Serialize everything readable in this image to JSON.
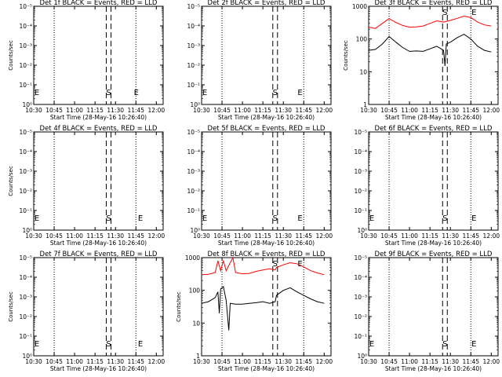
{
  "page_meta": {
    "background_color": "#ffffff",
    "axis_color": "#000000",
    "events_color": "#000000",
    "lld_color": "#ff0000"
  },
  "chart_data": [
    {
      "type": "line",
      "title": "Det 1f BLACK = Events, RED = LLD",
      "xlabel": "Start Time (28-May-16 10:26:40)",
      "ylabel": "Counts/sec",
      "x_ticks": [
        "10:30",
        "10:45",
        "11:00",
        "11:15",
        "11:30",
        "11:45",
        "12:00"
      ],
      "y_scale": "log",
      "y_ticks": [
        "10⁰",
        "10⁻¹",
        "10⁻²",
        "10⁻³",
        "10⁻⁴",
        "10⁻⁵"
      ],
      "markers": [
        {
          "label": "E",
          "time": "10:30"
        },
        {
          "label": "S",
          "time": "11:25"
        },
        {
          "label": "E",
          "time": "11:43"
        }
      ],
      "series": []
    },
    {
      "type": "line",
      "title": "Det 2f BLACK = Events, RED = LLD",
      "xlabel": "Start Time (28-May-16 10:26:40)",
      "ylabel": "",
      "x_ticks": [
        "10:30",
        "10:45",
        "11:00",
        "11:15",
        "11:30",
        "11:45",
        "12:00"
      ],
      "y_scale": "log",
      "y_ticks": [
        "10⁰",
        "10⁻¹",
        "10⁻²",
        "10⁻³",
        "10⁻⁴",
        "10⁻⁵"
      ],
      "markers": [
        {
          "label": "E",
          "time": "10:30"
        },
        {
          "label": "S",
          "time": "11:24"
        },
        {
          "label": "E",
          "time": "11:40"
        }
      ],
      "series": []
    },
    {
      "type": "line",
      "title": "Det 3f BLACK = Events, RED = LLD",
      "xlabel": "Start Time (28-May-16 10:26:40)",
      "ylabel": "Counts/sec",
      "x_ticks": [
        "10:30",
        "10:45",
        "11:00",
        "11:15",
        "11:30",
        "11:45",
        "12:00"
      ],
      "y_scale": "log",
      "y_ticks": [
        "1",
        "10",
        "100",
        "1000"
      ],
      "markers": [
        {
          "label": "S",
          "time": "11:26"
        },
        {
          "label": "E",
          "time": "11:45"
        }
      ],
      "series": [
        {
          "color": "#ff0000",
          "points": [
            [
              "10:30",
              230
            ],
            [
              "10:35",
              210
            ],
            [
              "10:40",
              300
            ],
            [
              "10:45",
              420
            ],
            [
              "10:50",
              320
            ],
            [
              "10:55",
              260
            ],
            [
              "11:00",
              230
            ],
            [
              "11:05",
              235
            ],
            [
              "11:10",
              250
            ],
            [
              "11:15",
              300
            ],
            [
              "11:20",
              360
            ],
            [
              "11:25",
              330
            ],
            [
              "11:30",
              370
            ],
            [
              "11:35",
              430
            ],
            [
              "11:40",
              500
            ],
            [
              "11:45",
              450
            ],
            [
              "11:50",
              330
            ],
            [
              "11:55",
              270
            ],
            [
              "12:00",
              250
            ]
          ]
        },
        {
          "color": "#000000",
          "points": [
            [
              "10:30",
              45
            ],
            [
              "10:35",
              48
            ],
            [
              "10:40",
              70
            ],
            [
              "10:45",
              120
            ],
            [
              "10:50",
              80
            ],
            [
              "10:55",
              55
            ],
            [
              "11:00",
              42
            ],
            [
              "11:05",
              43
            ],
            [
              "11:10",
              42
            ],
            [
              "11:15",
              50
            ],
            [
              "11:20",
              60
            ],
            [
              "11:25",
              45
            ],
            [
              "11:26",
              15
            ],
            [
              "11:27",
              70
            ],
            [
              "11:30",
              80
            ],
            [
              "11:35",
              110
            ],
            [
              "11:40",
              140
            ],
            [
              "11:45",
              100
            ],
            [
              "11:50",
              60
            ],
            [
              "11:55",
              45
            ],
            [
              "12:00",
              40
            ]
          ]
        }
      ]
    },
    {
      "type": "line",
      "title": "Det 4f BLACK = Events, RED = LLD",
      "xlabel": "Start Time (28-May-16 10:26:40)",
      "ylabel": "Counts/sec",
      "x_ticks": [
        "10:30",
        "10:45",
        "11:00",
        "11:15",
        "11:30",
        "11:45",
        "12:00"
      ],
      "y_scale": "log",
      "y_ticks": [
        "10⁰",
        "10⁻¹",
        "10⁻²",
        "10⁻³",
        "10⁻⁴",
        "10⁻⁵"
      ],
      "markers": [
        {
          "label": "E",
          "time": "10:30"
        },
        {
          "label": "S",
          "time": "11:25"
        },
        {
          "label": "E",
          "time": "11:46"
        }
      ],
      "series": []
    },
    {
      "type": "line",
      "title": "Det 5f BLACK = Events, RED = LLD",
      "xlabel": "Start Time (28-May-16 10:26:40)",
      "ylabel": "",
      "x_ticks": [
        "10:30",
        "10:45",
        "11:00",
        "11:15",
        "11:30",
        "11:45",
        "12:00"
      ],
      "y_scale": "log",
      "y_ticks": [
        "10⁰",
        "10⁻¹",
        "10⁻²",
        "10⁻³",
        "10⁻⁴",
        "10⁻⁵"
      ],
      "markers": [
        {
          "label": "E",
          "time": "10:30"
        },
        {
          "label": "S",
          "time": "11:24"
        },
        {
          "label": "E",
          "time": "11:40"
        }
      ],
      "series": []
    },
    {
      "type": "line",
      "title": "Det 6f BLACK = Events, RED = LLD",
      "xlabel": "Start Time (28-May-16 10:26:40)",
      "ylabel": "",
      "x_ticks": [
        "10:30",
        "10:45",
        "11:00",
        "11:15",
        "11:30",
        "11:45",
        "12:00"
      ],
      "y_scale": "log",
      "y_ticks": [
        "10⁰",
        "10⁻¹",
        "10⁻²",
        "10⁻³",
        "10⁻⁴",
        "10⁻⁵"
      ],
      "markers": [
        {
          "label": "E",
          "time": "10:30"
        },
        {
          "label": "S",
          "time": "11:26"
        },
        {
          "label": "E",
          "time": "11:45"
        }
      ],
      "series": []
    },
    {
      "type": "line",
      "title": "Det 7f BLACK = Events, RED = LLD",
      "xlabel": "Start Time (28-May-16 10:26:40)",
      "ylabel": "Counts/sec",
      "x_ticks": [
        "10:30",
        "10:45",
        "11:00",
        "11:15",
        "11:30",
        "11:45",
        "12:00"
      ],
      "y_scale": "log",
      "y_ticks": [
        "10⁰",
        "10⁻¹",
        "10⁻²",
        "10⁻³",
        "10⁻⁴",
        "10⁻⁵"
      ],
      "markers": [
        {
          "label": "E",
          "time": "10:30"
        },
        {
          "label": "S",
          "time": "11:25"
        },
        {
          "label": "E",
          "time": "11:46"
        }
      ],
      "series": []
    },
    {
      "type": "line",
      "title": "Det 8f BLACK = Events, RED = LLD",
      "xlabel": "Start Time (28-May-16 10:26:40)",
      "ylabel": "Counts/sec",
      "x_ticks": [
        "10:30",
        "10:45",
        "11:00",
        "11:15",
        "11:30",
        "11:45",
        "12:00"
      ],
      "y_scale": "log",
      "y_ticks": [
        "1",
        "10",
        "100",
        "1000"
      ],
      "markers": [
        {
          "label": "S",
          "time": "11:24"
        },
        {
          "label": "E",
          "time": "11:40"
        }
      ],
      "series": [
        {
          "color": "#ff0000",
          "points": [
            [
              "10:30",
              300
            ],
            [
              "10:35",
              310
            ],
            [
              "10:40",
              350
            ],
            [
              "10:42",
              800
            ],
            [
              "10:44",
              400
            ],
            [
              "10:46",
              800
            ],
            [
              "10:48",
              400
            ],
            [
              "10:53",
              1000
            ],
            [
              "10:55",
              350
            ],
            [
              "11:00",
              320
            ],
            [
              "11:05",
              330
            ],
            [
              "11:10",
              380
            ],
            [
              "11:15",
              420
            ],
            [
              "11:20",
              460
            ],
            [
              "11:24",
              420
            ],
            [
              "11:25",
              500
            ],
            [
              "11:30",
              600
            ],
            [
              "11:35",
              700
            ],
            [
              "11:40",
              650
            ],
            [
              "11:45",
              520
            ],
            [
              "11:50",
              400
            ],
            [
              "11:55",
              340
            ],
            [
              "12:00",
              300
            ]
          ]
        },
        {
          "color": "#000000",
          "points": [
            [
              "10:30",
              40
            ],
            [
              "10:35",
              45
            ],
            [
              "10:40",
              60
            ],
            [
              "10:42",
              90
            ],
            [
              "10:43",
              20
            ],
            [
              "10:44",
              110
            ],
            [
              "10:46",
              130
            ],
            [
              "10:48",
              50
            ],
            [
              "10:50",
              6
            ],
            [
              "10:51",
              40
            ],
            [
              "10:55",
              38
            ],
            [
              "11:00",
              38
            ],
            [
              "11:05",
              40
            ],
            [
              "11:10",
              42
            ],
            [
              "11:15",
              45
            ],
            [
              "11:20",
              40
            ],
            [
              "11:24",
              45
            ],
            [
              "11:25",
              70
            ],
            [
              "11:30",
              100
            ],
            [
              "11:35",
              120
            ],
            [
              "11:40",
              90
            ],
            [
              "11:45",
              70
            ],
            [
              "11:50",
              55
            ],
            [
              "11:55",
              45
            ],
            [
              "12:00",
              40
            ]
          ]
        }
      ]
    },
    {
      "type": "line",
      "title": "Det 9f BLACK = Events, RED = LLD",
      "xlabel": "Start Time (28-May-16 10:26:40)",
      "ylabel": "",
      "x_ticks": [
        "10:30",
        "10:45",
        "11:00",
        "11:15",
        "11:30",
        "11:45",
        "12:00"
      ],
      "y_scale": "log",
      "y_ticks": [
        "10⁰",
        "10⁻¹",
        "10⁻²",
        "10⁻³",
        "10⁻⁴",
        "10⁻⁵"
      ],
      "markers": [
        {
          "label": "E",
          "time": "10:30"
        },
        {
          "label": "S",
          "time": "11:26"
        },
        {
          "label": "E",
          "time": "11:45"
        }
      ],
      "series": []
    }
  ]
}
